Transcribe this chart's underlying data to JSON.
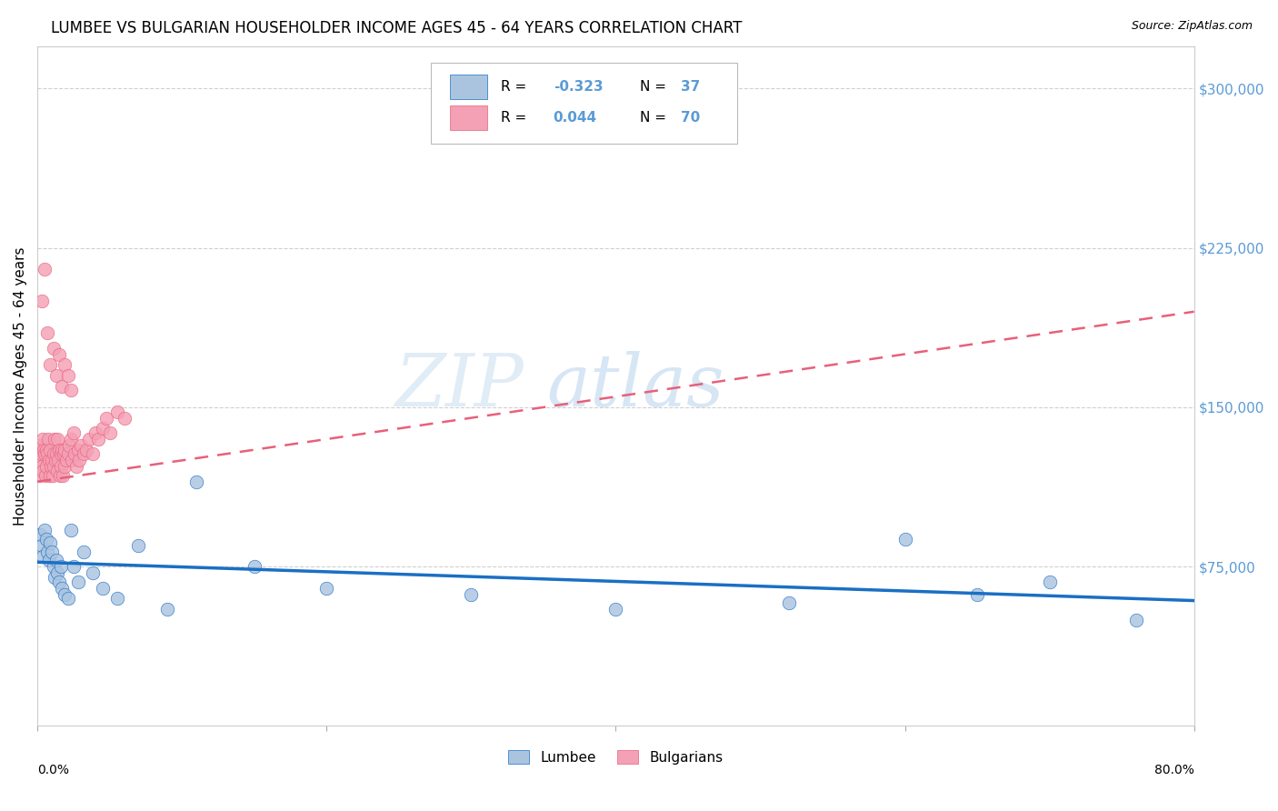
{
  "title": "LUMBEE VS BULGARIAN HOUSEHOLDER INCOME AGES 45 - 64 YEARS CORRELATION CHART",
  "source": "Source: ZipAtlas.com",
  "ylabel": "Householder Income Ages 45 - 64 years",
  "xmin": 0.0,
  "xmax": 80.0,
  "ymin": 0,
  "ymax": 320000,
  "yticks": [
    0,
    75000,
    150000,
    225000,
    300000
  ],
  "lumbee_color": "#aac4e0",
  "bulg_color": "#f4a0b5",
  "lumbee_line_color": "#1a6fc4",
  "bulg_line_color": "#e8607a",
  "background_color": "#ffffff",
  "grid_color": "#d0d0d0",
  "watermark": "ZIPatlas",
  "lumbee_x": [
    0.2,
    0.3,
    0.4,
    0.5,
    0.6,
    0.7,
    0.8,
    0.9,
    1.0,
    1.1,
    1.2,
    1.3,
    1.4,
    1.5,
    1.6,
    1.7,
    1.9,
    2.1,
    2.3,
    2.5,
    2.8,
    3.2,
    3.8,
    4.5,
    5.5,
    7.0,
    9.0,
    11.0,
    15.0,
    20.0,
    30.0,
    40.0,
    52.0,
    60.0,
    65.0,
    70.0,
    76.0
  ],
  "lumbee_y": [
    90000,
    85000,
    80000,
    92000,
    88000,
    82000,
    78000,
    86000,
    82000,
    75000,
    70000,
    78000,
    72000,
    68000,
    75000,
    65000,
    62000,
    60000,
    92000,
    75000,
    68000,
    82000,
    72000,
    65000,
    60000,
    85000,
    55000,
    115000,
    75000,
    65000,
    62000,
    55000,
    58000,
    88000,
    62000,
    68000,
    50000
  ],
  "bulg_x": [
    0.1,
    0.15,
    0.2,
    0.25,
    0.3,
    0.35,
    0.4,
    0.45,
    0.5,
    0.55,
    0.6,
    0.65,
    0.7,
    0.75,
    0.8,
    0.85,
    0.9,
    0.95,
    1.0,
    1.05,
    1.1,
    1.15,
    1.2,
    1.25,
    1.3,
    1.35,
    1.4,
    1.45,
    1.5,
    1.55,
    1.6,
    1.65,
    1.7,
    1.75,
    1.8,
    1.85,
    1.9,
    2.0,
    2.1,
    2.2,
    2.3,
    2.4,
    2.5,
    2.6,
    2.7,
    2.8,
    2.9,
    3.0,
    3.2,
    3.4,
    3.6,
    3.8,
    4.0,
    4.2,
    4.5,
    4.8,
    5.0,
    5.5,
    6.0,
    0.3,
    0.5,
    0.7,
    0.9,
    1.1,
    1.3,
    1.5,
    1.7,
    1.9,
    2.1,
    2.3
  ],
  "bulg_y": [
    125000,
    118000,
    132000,
    128000,
    122000,
    135000,
    120000,
    130000,
    128000,
    118000,
    130000,
    122000,
    128000,
    135000,
    125000,
    118000,
    130000,
    122000,
    125000,
    118000,
    128000,
    122000,
    135000,
    125000,
    128000,
    120000,
    135000,
    125000,
    130000,
    118000,
    128000,
    122000,
    130000,
    118000,
    128000,
    122000,
    130000,
    125000,
    128000,
    132000,
    135000,
    125000,
    138000,
    128000,
    122000,
    130000,
    125000,
    132000,
    128000,
    130000,
    135000,
    128000,
    138000,
    135000,
    140000,
    145000,
    138000,
    148000,
    145000,
    200000,
    215000,
    185000,
    170000,
    178000,
    165000,
    175000,
    160000,
    170000,
    165000,
    158000
  ]
}
